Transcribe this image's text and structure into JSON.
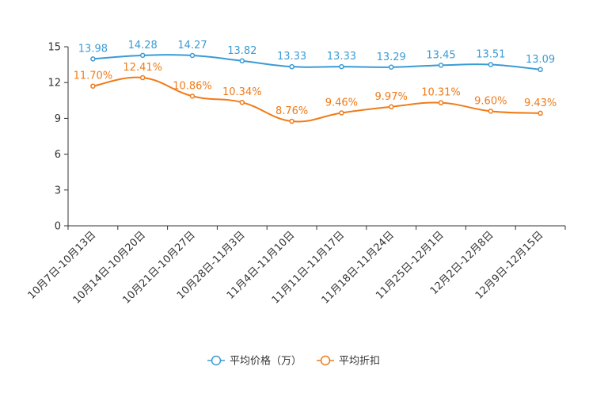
{
  "chart_data": {
    "type": "line",
    "title": "",
    "xlabel": "",
    "ylabel": "",
    "ylim": [
      0,
      15
    ],
    "yticks": [
      0,
      3,
      6,
      9,
      12,
      15
    ],
    "categories": [
      "10月7日-10月13日",
      "10月14日-10月20日",
      "10月21日-10月27日",
      "10月28日-11月3日",
      "11月4日-11月10日",
      "11月11日-11月17日",
      "11月18日-11月24日",
      "11月25日-12月1日",
      "12月2日-12月8日",
      "12月9日-12月15日"
    ],
    "series": [
      {
        "name": "平均价格（万）",
        "color": "#3a9bd5",
        "values": [
          13.98,
          14.28,
          14.27,
          13.82,
          13.33,
          13.33,
          13.29,
          13.45,
          13.51,
          13.09
        ],
        "labels": [
          "13.98",
          "14.28",
          "14.27",
          "13.82",
          "13.33",
          "13.33",
          "13.29",
          "13.45",
          "13.51",
          "13.09"
        ]
      },
      {
        "name": "平均折扣",
        "color": "#f07b18",
        "values": [
          11.7,
          12.41,
          10.86,
          10.34,
          8.76,
          9.46,
          9.97,
          10.31,
          9.6,
          9.43
        ],
        "labels": [
          "11.70%",
          "12.41%",
          "10.86%",
          "10.34%",
          "8.76%",
          "9.46%",
          "9.97%",
          "10.31%",
          "9.60%",
          "9.43%"
        ]
      }
    ],
    "legend": {
      "position": "bottom-center",
      "items": [
        "平均价格（万）",
        "平均折扣"
      ]
    },
    "grid": false
  }
}
